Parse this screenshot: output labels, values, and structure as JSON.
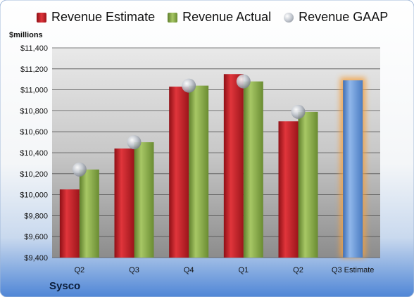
{
  "chart_data": {
    "type": "bar",
    "ylabel": "$millions",
    "company": "Sysco",
    "categories": [
      "Q2",
      "Q3",
      "Q4",
      "Q1",
      "Q2",
      "Q3 Estimate"
    ],
    "ylim": [
      9400,
      11400
    ],
    "yticks": [
      "$9,400",
      "$9,600",
      "$9,800",
      "$10,000",
      "$10,200",
      "$10,400",
      "$10,600",
      "$10,800",
      "$11,000",
      "$11,200",
      "$11,400"
    ],
    "ytick_values": [
      9400,
      9600,
      9800,
      10000,
      10200,
      10400,
      10600,
      10800,
      11000,
      11200,
      11400
    ],
    "grid": true,
    "legend_position": "top",
    "series": [
      {
        "name": "Revenue Estimate",
        "color": "#c8232a",
        "values": [
          10050,
          10440,
          11030,
          11150,
          10700,
          null
        ]
      },
      {
        "name": "Revenue Actual",
        "color": "#8db14f",
        "values": [
          10240,
          10500,
          11040,
          11080,
          10790,
          null
        ]
      },
      {
        "name": "Revenue GAAP",
        "color": "#b8bec8",
        "values": [
          10240,
          10500,
          11040,
          11080,
          10790,
          null
        ]
      }
    ],
    "estimate_bar": {
      "category": "Q3 Estimate",
      "value": 11090,
      "color": "#6e9bd6",
      "glow": "#f4a040"
    }
  }
}
